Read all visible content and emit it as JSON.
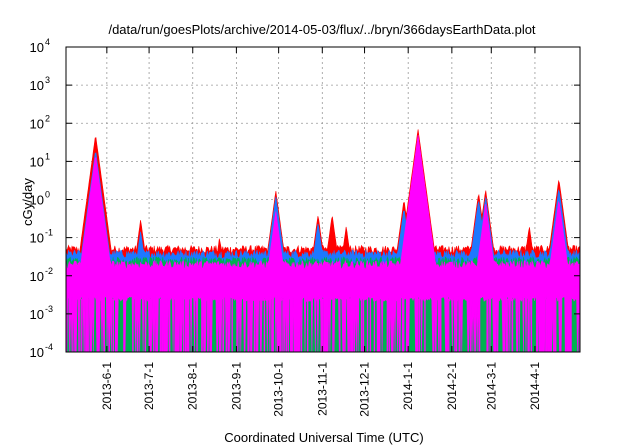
{
  "chart_data": {
    "type": "area",
    "title": "/data/run/goesPlots/archive/2014-05-03/flux/../bryn/366daysEarthData.plot",
    "xlabel": "Coordinated Universal Time (UTC)",
    "ylabel": "cGy/day",
    "scale_y": "log",
    "ylim": [
      0.0001,
      10000
    ],
    "xlim": [
      "2013-05-03",
      "2014-05-03"
    ],
    "grid": true,
    "y_ticks": [
      {
        "value": 0.0001,
        "mantissa": "10",
        "exp": "-4"
      },
      {
        "value": 0.001,
        "mantissa": "10",
        "exp": "-3"
      },
      {
        "value": 0.01,
        "mantissa": "10",
        "exp": "-2"
      },
      {
        "value": 0.1,
        "mantissa": "10",
        "exp": "-1"
      },
      {
        "value": 1,
        "mantissa": "10",
        "exp": "0"
      },
      {
        "value": 10,
        "mantissa": "10",
        "exp": "1"
      },
      {
        "value": 100,
        "mantissa": "10",
        "exp": "2"
      },
      {
        "value": 1000,
        "mantissa": "10",
        "exp": "3"
      },
      {
        "value": 10000,
        "mantissa": "10",
        "exp": "4"
      }
    ],
    "x_ticks": [
      "2013-6-1",
      "2013-7-1",
      "2013-8-1",
      "2013-9-1",
      "2013-10-1",
      "2013-11-1",
      "2013-12-1",
      "2014-1-1",
      "2014-2-1",
      "2014-3-1",
      "2014-4-1"
    ],
    "series": [
      {
        "color": "#ff0000",
        "baseline": 0.05,
        "peaks": [
          [
            "2013-05-18",
            0.9
          ],
          [
            "2013-05-22",
            0.35
          ],
          [
            "2013-05-24",
            50
          ],
          [
            "2013-06-25",
            0.3
          ],
          [
            "2013-08-20",
            0.1
          ],
          [
            "2013-09-29",
            1.7
          ],
          [
            "2013-10-29",
            0.4
          ],
          [
            "2013-11-08",
            0.4
          ],
          [
            "2013-11-18",
            0.2
          ],
          [
            "2013-12-29",
            1.0
          ],
          [
            "2014-01-08",
            70
          ],
          [
            "2014-02-20",
            1.5
          ],
          [
            "2014-02-25",
            1.8
          ],
          [
            "2014-03-28",
            0.2
          ],
          [
            "2014-04-18",
            3.5
          ]
        ]
      },
      {
        "color": "#1e78ff",
        "baseline": 0.038,
        "peaks": [
          [
            "2013-05-18",
            0.4
          ],
          [
            "2013-05-24",
            20
          ],
          [
            "2013-06-25",
            0.15
          ],
          [
            "2013-09-29",
            1.2
          ],
          [
            "2013-10-29",
            0.25
          ],
          [
            "2013-12-29",
            0.6
          ],
          [
            "2014-01-08",
            40
          ],
          [
            "2014-02-20",
            1.0
          ],
          [
            "2014-02-25",
            1.2
          ],
          [
            "2014-04-18",
            2.0
          ]
        ]
      },
      {
        "color": "#00b050",
        "baseline": 0.025,
        "peaks": [
          [
            "2013-05-24",
            1.5
          ],
          [
            "2014-01-08",
            5
          ],
          [
            "2014-02-25",
            0.2
          ],
          [
            "2014-04-18",
            0.3
          ]
        ]
      },
      {
        "color": "#ff00ff",
        "baseline": 0.02,
        "floor": 0.0025,
        "peaks": [
          [
            "2013-05-24",
            15
          ],
          [
            "2013-09-29",
            0.5
          ],
          [
            "2014-01-08",
            50
          ],
          [
            "2014-02-25",
            0.8
          ],
          [
            "2014-04-18",
            1.0
          ]
        ]
      }
    ]
  }
}
